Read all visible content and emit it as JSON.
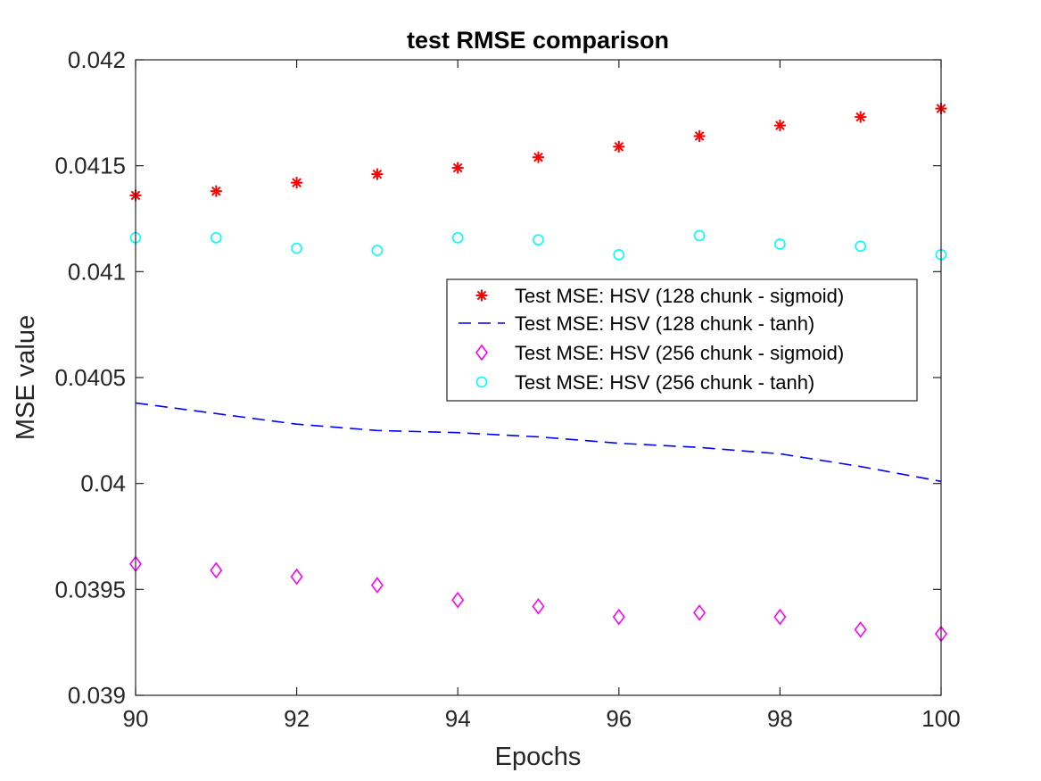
{
  "chart_data": {
    "type": "line",
    "title": "test RMSE comparison",
    "xlabel": "Epochs",
    "ylabel": "MSE value",
    "xlim": [
      90,
      100
    ],
    "ylim": [
      0.039,
      0.042
    ],
    "x_ticks": [
      90,
      92,
      94,
      96,
      98,
      100
    ],
    "x_tick_labels": [
      "90",
      "92",
      "94",
      "96",
      "98",
      "100"
    ],
    "y_ticks": [
      0.039,
      0.0395,
      0.04,
      0.0405,
      0.041,
      0.0415,
      0.042
    ],
    "y_tick_labels": [
      "0.039",
      "0.0395",
      "0.04",
      "0.0405",
      "0.041",
      "0.0415",
      "0.042"
    ],
    "grid": false,
    "legend_position": "right",
    "x": [
      90,
      91,
      92,
      93,
      94,
      95,
      96,
      97,
      98,
      99,
      100
    ],
    "series": [
      {
        "name": "Test MSE: HSV (128 chunk - sigmoid)",
        "style": "markers",
        "marker": "asterisk",
        "color": "#ff0000",
        "values": [
          0.04136,
          0.04138,
          0.04142,
          0.04146,
          0.04149,
          0.04154,
          0.04159,
          0.04164,
          0.04169,
          0.04173,
          0.04177
        ]
      },
      {
        "name": "Test MSE: HSV (128 chunk - tanh)",
        "style": "dashed-line",
        "marker": "none",
        "color": "#0000ff",
        "values": [
          0.04038,
          0.04033,
          0.04028,
          0.04025,
          0.04024,
          0.04022,
          0.04019,
          0.04017,
          0.04014,
          0.04008,
          0.04001
        ]
      },
      {
        "name": "Test MSE: HSV (256 chunk - sigmoid)",
        "style": "markers",
        "marker": "diamond",
        "color": "#ff00ff",
        "values": [
          0.03962,
          0.03959,
          0.03956,
          0.03952,
          0.03945,
          0.03942,
          0.03937,
          0.03939,
          0.03937,
          0.03931,
          0.03929
        ]
      },
      {
        "name": "Test MSE: HSV (256 chunk - tanh)",
        "style": "markers",
        "marker": "circle",
        "color": "#00ffff",
        "values": [
          0.04116,
          0.04116,
          0.04111,
          0.0411,
          0.04116,
          0.04115,
          0.04108,
          0.04117,
          0.04113,
          0.04112,
          0.04108
        ]
      }
    ]
  }
}
